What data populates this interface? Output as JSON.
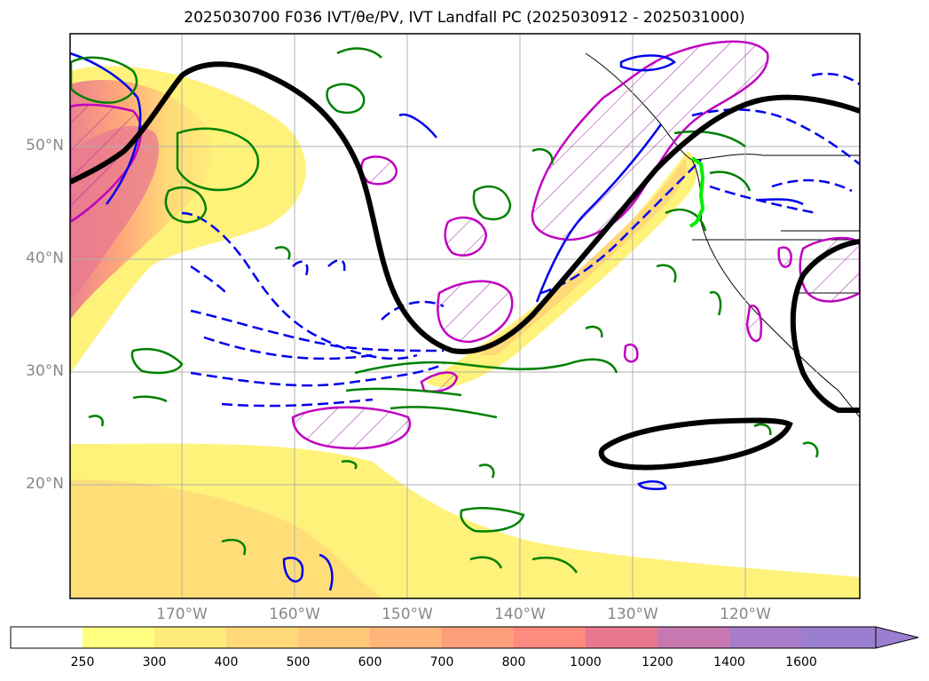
{
  "title": "2025030700 F036 IVT/θe/PV, IVT Landfall PC (2025030912 - 2025031000)",
  "lat_labels": [
    "50°N",
    "40°N",
    "30°N",
    "20°N"
  ],
  "lon_labels": [
    "170°W",
    "160°W",
    "150°W",
    "140°W",
    "130°W",
    "120°W"
  ],
  "colorbar": {
    "ticks": [
      "250",
      "300",
      "400",
      "500",
      "600",
      "700",
      "800",
      "1000",
      "1200",
      "1400",
      "1600"
    ],
    "colors": [
      "#ffffff",
      "#ffff80",
      "#ffeb7a",
      "#ffd878",
      "#ffc878",
      "#ffb57a",
      "#ff9e7a",
      "#ff8a80",
      "#e87890",
      "#c878b0",
      "#a87cc8",
      "#9a7ed0"
    ]
  },
  "map": {
    "lat_range": [
      10,
      60
    ],
    "lon_range": [
      -180,
      -110
    ],
    "gridlines": true
  }
}
